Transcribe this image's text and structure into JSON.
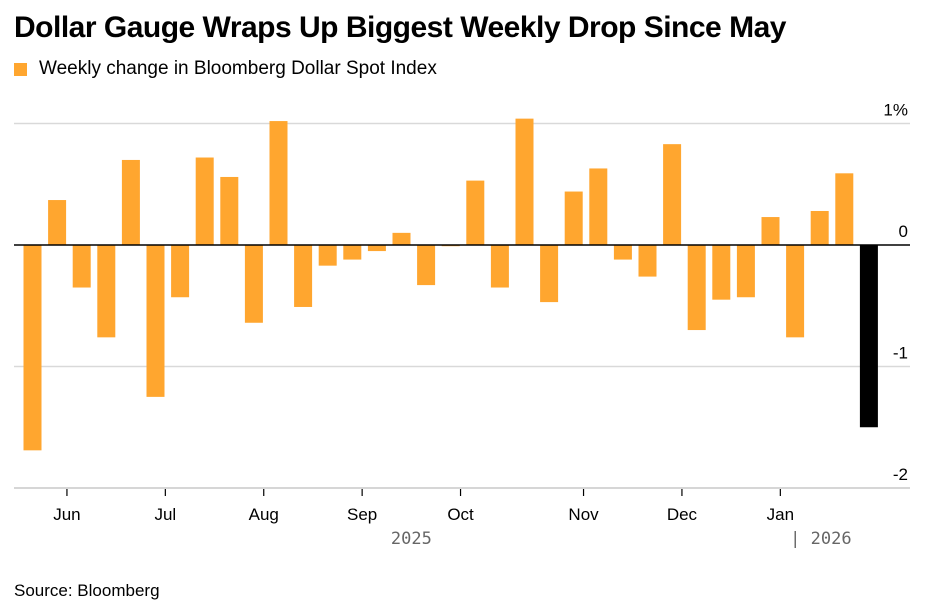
{
  "title": "Dollar Gauge Wraps Up Biggest Weekly Drop Since May",
  "legend": {
    "label": "Weekly change in Bloomberg Dollar Spot Index"
  },
  "source": "Source: Bloomberg",
  "colors": {
    "bar": "#FFA62F",
    "highlight": "#000000",
    "grid": "#d9d9d9",
    "zero": "#000000"
  },
  "chart_data": {
    "type": "bar",
    "title": "Dollar Gauge Wraps Up Biggest Weekly Drop Since May",
    "series": [
      {
        "name": "Weekly change in Bloomberg Dollar Spot Index",
        "values": [
          -1.69,
          0.37,
          -0.35,
          -0.76,
          0.7,
          -1.25,
          -0.43,
          0.72,
          0.56,
          -0.64,
          1.02,
          -0.51,
          -0.17,
          -0.12,
          -0.05,
          0.1,
          -0.33,
          -0.01,
          0.53,
          -0.35,
          1.04,
          -0.47,
          0.44,
          0.63,
          -0.12,
          -0.26,
          0.83,
          -0.7,
          -0.45,
          -0.43,
          0.23,
          -0.76,
          0.28,
          0.59,
          -1.5
        ]
      }
    ],
    "highlight_last": true,
    "ylim": [
      -2,
      1
    ],
    "y_ticks": [
      {
        "value": 1,
        "label": "1%"
      },
      {
        "value": 0,
        "label": "0"
      },
      {
        "value": -1,
        "label": "-1"
      },
      {
        "value": -2,
        "label": "-2"
      }
    ],
    "x_month_labels": [
      {
        "label": "Jun",
        "week_index": 1.4
      },
      {
        "label": "Jul",
        "week_index": 5.4
      },
      {
        "label": "Aug",
        "week_index": 9.4
      },
      {
        "label": "Sep",
        "week_index": 13.4
      },
      {
        "label": "Oct",
        "week_index": 17.4
      },
      {
        "label": "Nov",
        "week_index": 22.4
      },
      {
        "label": "Dec",
        "week_index": 26.4
      },
      {
        "label": "Jan",
        "week_index": 30.4
      }
    ],
    "x_year_labels": [
      {
        "label": "2025",
        "week_index": 15.4
      },
      {
        "label": "| 2026",
        "week_index": 30.8
      }
    ],
    "grid": true,
    "legend_position": "top-left"
  }
}
